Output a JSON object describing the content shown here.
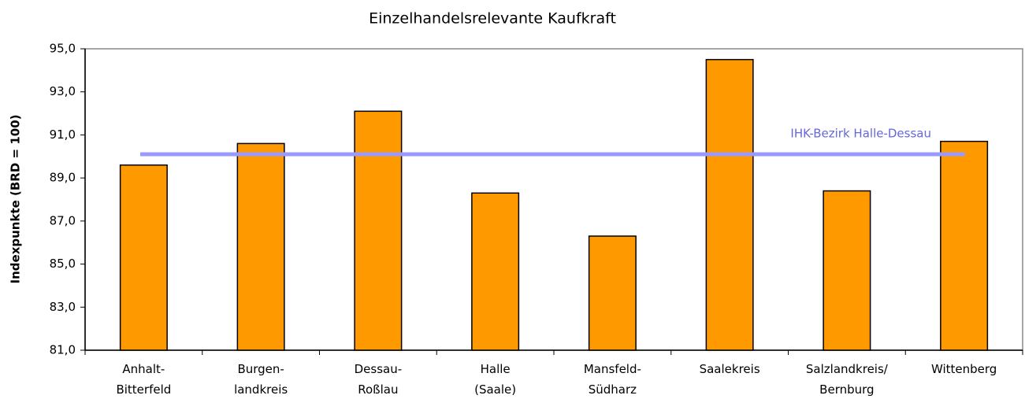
{
  "chart_data": {
    "type": "bar",
    "title": "Einzelhandelsrelevante Kaufkraft",
    "y_label": "Indexpunkte (BRD = 100)",
    "categories": [
      "Anhalt-\nBitterfeld",
      "Burgen-\nlandkreis",
      "Dessau-\nRoßlau",
      "Halle\n(Saale)",
      "Mansfeld-\nSüdharz",
      "Saalekreis",
      "Salzlandkreis/\nBernburg",
      "Wittenberg"
    ],
    "values": [
      89.6,
      90.6,
      92.1,
      88.3,
      86.3,
      94.5,
      88.4,
      90.7
    ],
    "color": "#ff9900",
    "reference": {
      "label": "IHK-Bezirk Halle-Dessau",
      "value": 90.1,
      "color": "#9999ff"
    },
    "ylim": [
      81,
      95
    ],
    "yticks": [
      {
        "value": 81,
        "label": "81,0"
      },
      {
        "value": 83,
        "label": "83,0"
      },
      {
        "value": 85,
        "label": "85,0"
      },
      {
        "value": 87,
        "label": "87,0"
      },
      {
        "value": 89,
        "label": "89,0"
      },
      {
        "value": 91,
        "label": "91,0"
      },
      {
        "value": 93,
        "label": "93,0"
      },
      {
        "value": 95,
        "label": "95,0"
      }
    ],
    "grid": false
  }
}
